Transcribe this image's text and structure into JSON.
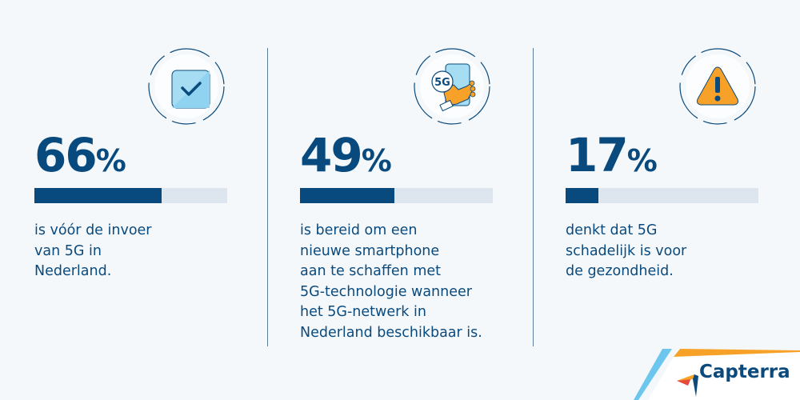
{
  "stats": [
    {
      "value": "66",
      "sign": "%",
      "percent": 66,
      "icon": "checkbox-icon",
      "lines": [
        "is vóór de invoer",
        "van 5G in",
        "Nederland."
      ]
    },
    {
      "value": "49",
      "sign": "%",
      "percent": 49,
      "icon": "5g-smartphone-icon",
      "icon_label": "5G",
      "lines": [
        "is bereid om een",
        "nieuwe smartphone",
        "aan te schaffen met",
        "5G-technologie wanneer",
        "het 5G-netwerk in",
        "Nederland beschikbaar is."
      ]
    },
    {
      "value": "17",
      "sign": "%",
      "percent": 17,
      "icon": "warning-icon",
      "lines": [
        "denkt dat 5G",
        "schadelijk is voor",
        "de gezondheid."
      ]
    }
  ],
  "brand": {
    "name": "Capterra"
  },
  "colors": {
    "primary": "#084a7e",
    "bar_track": "#dde6ee",
    "background": "#f4f8fb",
    "accent_orange": "#f7a128",
    "accent_blue": "#6cc6ee"
  },
  "chart_data": {
    "type": "bar",
    "orientation": "horizontal",
    "categories": [
      "is vóór de invoer van 5G in Nederland.",
      "is bereid om een nieuwe smartphone aan te schaffen met 5G-technologie wanneer het 5G-netwerk in Nederland beschikbaar is.",
      "denkt dat 5G schadelijk is voor de gezondheid."
    ],
    "values": [
      66,
      49,
      17
    ],
    "unit": "%",
    "xlim": [
      0,
      100
    ],
    "title": "",
    "grid": false,
    "legend": null
  }
}
